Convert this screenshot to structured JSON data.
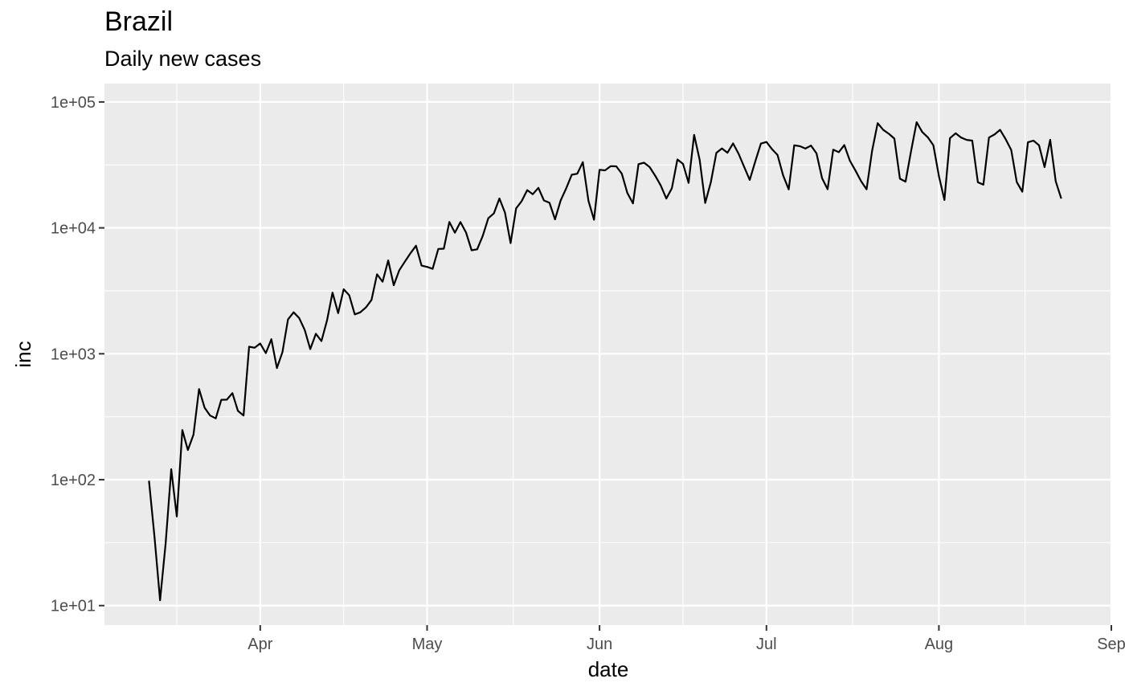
{
  "chart_data": {
    "type": "line",
    "title": "Brazil",
    "subtitle": "Daily new cases",
    "xlabel": "date",
    "ylabel": "inc",
    "y_scale": "log10",
    "ylim": [
      7,
      140000
    ],
    "xlim": [
      "2020-03-04",
      "2020-09-01"
    ],
    "x_ticks": [
      {
        "date": "2020-04-01",
        "label": "Apr"
      },
      {
        "date": "2020-05-01",
        "label": "May"
      },
      {
        "date": "2020-06-01",
        "label": "Jun"
      },
      {
        "date": "2020-07-01",
        "label": "Jul"
      },
      {
        "date": "2020-08-01",
        "label": "Aug"
      },
      {
        "date": "2020-09-01",
        "label": "Sep"
      }
    ],
    "y_ticks": [
      {
        "value": 10,
        "label": "1e+01"
      },
      {
        "value": 100,
        "label": "1e+02"
      },
      {
        "value": 1000,
        "label": "1e+03"
      },
      {
        "value": 10000,
        "label": "1e+04"
      },
      {
        "value": 100000,
        "label": "1e+05"
      }
    ],
    "grid": true,
    "line_color": "#000000",
    "panel_color": "#ebebeb",
    "series": [
      {
        "x": [
          "2020-03-12",
          "2020-03-13",
          "2020-03-14",
          "2020-03-15",
          "2020-03-16",
          "2020-03-17",
          "2020-03-18",
          "2020-03-19",
          "2020-03-20",
          "2020-03-21",
          "2020-03-22",
          "2020-03-23",
          "2020-03-24",
          "2020-03-25",
          "2020-03-26",
          "2020-03-27",
          "2020-03-28",
          "2020-03-29",
          "2020-03-30",
          "2020-03-31",
          "2020-04-01",
          "2020-04-02",
          "2020-04-03",
          "2020-04-04",
          "2020-04-05",
          "2020-04-06",
          "2020-04-07",
          "2020-04-08",
          "2020-04-09",
          "2020-04-10",
          "2020-04-11",
          "2020-04-12",
          "2020-04-13",
          "2020-04-14",
          "2020-04-15",
          "2020-04-16",
          "2020-04-17",
          "2020-04-18",
          "2020-04-19",
          "2020-04-20",
          "2020-04-21",
          "2020-04-22",
          "2020-04-23",
          "2020-04-24",
          "2020-04-25",
          "2020-04-26",
          "2020-04-27",
          "2020-04-28",
          "2020-04-29",
          "2020-04-30",
          "2020-05-01",
          "2020-05-02",
          "2020-05-03",
          "2020-05-04",
          "2020-05-05",
          "2020-05-06",
          "2020-05-07",
          "2020-05-08",
          "2020-05-09",
          "2020-05-10",
          "2020-05-11",
          "2020-05-12",
          "2020-05-13",
          "2020-05-14",
          "2020-05-15",
          "2020-05-16",
          "2020-05-17",
          "2020-05-18",
          "2020-05-19",
          "2020-05-20",
          "2020-05-21",
          "2020-05-22",
          "2020-05-23",
          "2020-05-24",
          "2020-05-25",
          "2020-05-26",
          "2020-05-27",
          "2020-05-28",
          "2020-05-29",
          "2020-05-30",
          "2020-05-31",
          "2020-06-01",
          "2020-06-02",
          "2020-06-03",
          "2020-06-04",
          "2020-06-05",
          "2020-06-06",
          "2020-06-07",
          "2020-06-08",
          "2020-06-09",
          "2020-06-10",
          "2020-06-11",
          "2020-06-12",
          "2020-06-13",
          "2020-06-14",
          "2020-06-15",
          "2020-06-16",
          "2020-06-17",
          "2020-06-18",
          "2020-06-19",
          "2020-06-20",
          "2020-06-21",
          "2020-06-22",
          "2020-06-23",
          "2020-06-24",
          "2020-06-25",
          "2020-06-26",
          "2020-06-27",
          "2020-06-28",
          "2020-06-29",
          "2020-06-30",
          "2020-07-01",
          "2020-07-02",
          "2020-07-03",
          "2020-07-04",
          "2020-07-05",
          "2020-07-06",
          "2020-07-07",
          "2020-07-08",
          "2020-07-09",
          "2020-07-10",
          "2020-07-11",
          "2020-07-12",
          "2020-07-13",
          "2020-07-14",
          "2020-07-15",
          "2020-07-16",
          "2020-07-17",
          "2020-07-18",
          "2020-07-19",
          "2020-07-20",
          "2020-07-21",
          "2020-07-22",
          "2020-07-23",
          "2020-07-24",
          "2020-07-25",
          "2020-07-26",
          "2020-07-27",
          "2020-07-28",
          "2020-07-29",
          "2020-07-30",
          "2020-07-31",
          "2020-08-01",
          "2020-08-02",
          "2020-08-03",
          "2020-08-04",
          "2020-08-05",
          "2020-08-06",
          "2020-08-07",
          "2020-08-08",
          "2020-08-09",
          "2020-08-10",
          "2020-08-11",
          "2020-08-12",
          "2020-08-13",
          "2020-08-14",
          "2020-08-15",
          "2020-08-16",
          "2020-08-17",
          "2020-08-18",
          "2020-08-19",
          "2020-08-20",
          "2020-08-21",
          "2020-08-22",
          "2020-08-23"
        ],
        "y": [
          98,
          35,
          11,
          31,
          121,
          51,
          248,
          172,
          228,
          525,
          373,
          323,
          307,
          431,
          432,
          487,
          352,
          323,
          1138,
          1117,
          1208,
          1012,
          1304,
          770,
          1031,
          1873,
          2136,
          1922,
          1546,
          1089,
          1442,
          1261,
          1832,
          3058,
          2105,
          3257,
          2917,
          2055,
          2136,
          2336,
          2678,
          4279,
          3735,
          5514,
          3503,
          4613,
          5385,
          6276,
          7218,
          5015,
          4898,
          4726,
          6794,
          6835,
          11156,
          9162,
          11121,
          9167,
          6638,
          6760,
          8620,
          11923,
          13028,
          17126,
          13220,
          7569,
          14288,
          16324,
          19951,
          18508,
          20803,
          16508,
          15813,
          11687,
          16508,
          20599,
          26417,
          26928,
          33274,
          16409,
          11598,
          28936,
          28633,
          30925,
          30830,
          26928,
          18912,
          15654,
          32091,
          32913,
          30412,
          25982,
          21704,
          17110,
          20647,
          34918,
          32188,
          22765,
          54771,
          34666,
          15762,
          23051,
          39436,
          42725,
          39483,
          46860,
          38693,
          30476,
          24052,
          33846,
          46712,
          48105,
          42223,
          37923,
          26051,
          20229,
          45305,
          44571,
          42619,
          45048,
          39023,
          24831,
          20286,
          41857,
          39924,
          45403,
          34177,
          28532,
          23529,
          20257,
          41008,
          67860,
          59961,
          55891,
          51147,
          24578,
          23284,
          40816,
          69074,
          57837,
          52383,
          45392,
          25800,
          16641,
          51603,
          56411,
          52160,
          49970,
          49298,
          23010,
          22048,
          52160,
          55155,
          60091,
          50644,
          41576,
          23101,
          19373,
          47828,
          49298,
          45323,
          30355,
          50032,
          23421,
          17078
        ]
      }
    ]
  }
}
